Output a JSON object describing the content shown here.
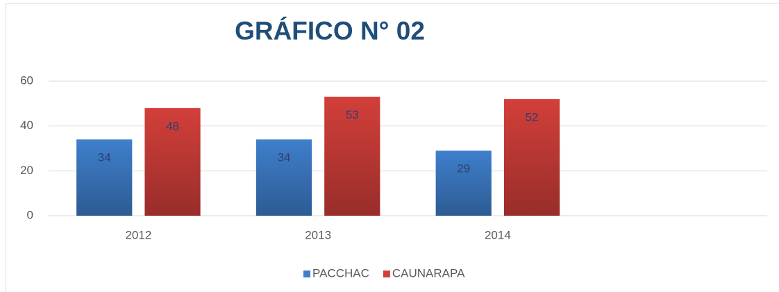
{
  "chart_data": {
    "type": "bar",
    "title": "GRÁFICO N° 02",
    "categories": [
      "2012",
      "2013",
      "2014",
      null
    ],
    "series": [
      {
        "name": "PACCHAC",
        "color": "#3f7fcc",
        "values": [
          34,
          34,
          29,
          null
        ]
      },
      {
        "name": "CAUNARAPA",
        "color": "#d33f3a",
        "values": [
          48,
          53,
          52,
          null
        ]
      }
    ],
    "ylim": [
      0,
      60
    ],
    "yticks": [
      0,
      20,
      40,
      60
    ],
    "grid": true,
    "legend": "bottom"
  }
}
